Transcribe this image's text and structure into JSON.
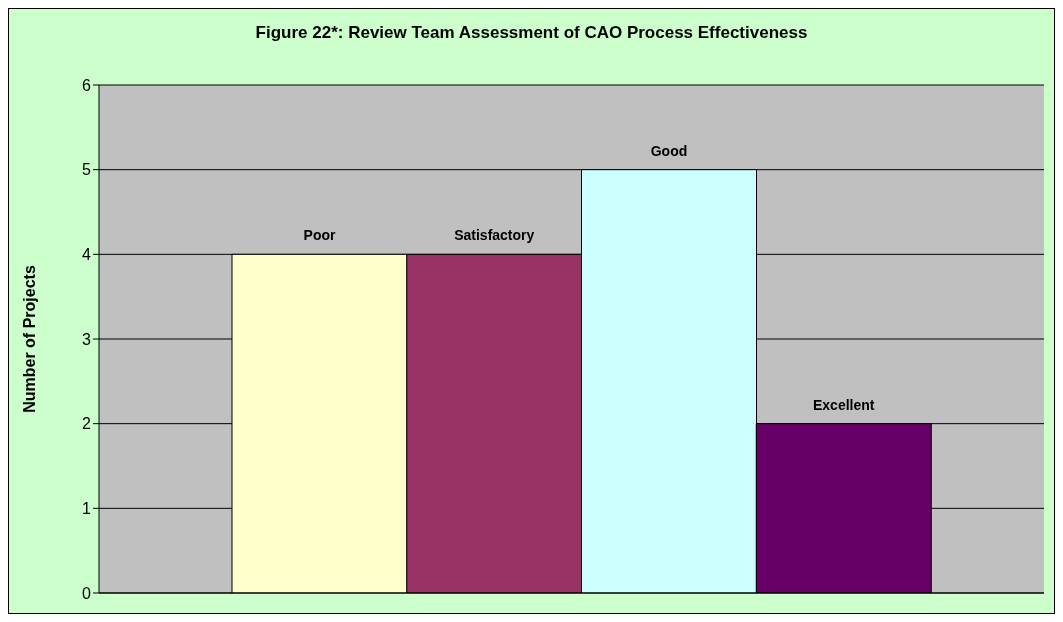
{
  "chart_data": {
    "type": "bar",
    "title": "Figure 22*: Review Team Assessment of CAO Process Effectiveness",
    "ylabel": "Number of Projects",
    "categories": [
      "Poor",
      "Satisfactory",
      "Good",
      "Excellent"
    ],
    "values": [
      4,
      4,
      5,
      2
    ],
    "colors": [
      "#ffffcc",
      "#993366",
      "#ccffff",
      "#660066"
    ],
    "ylim": [
      0,
      6
    ],
    "yticks": [
      0,
      1,
      2,
      3,
      4,
      5,
      6
    ],
    "grid": "y",
    "tick_labels": "y"
  }
}
